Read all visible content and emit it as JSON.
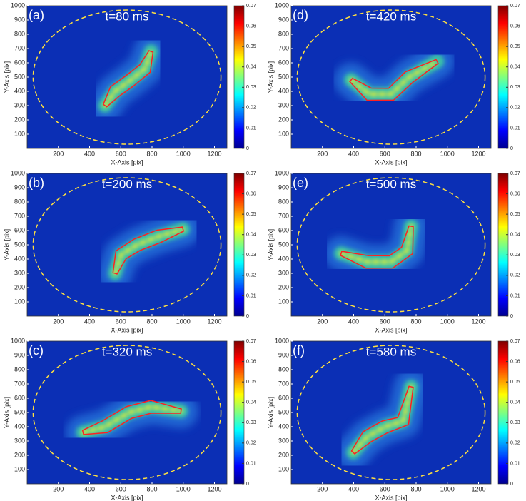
{
  "chart_data": [
    {
      "type": "heatmap",
      "label": "(a)",
      "title": "t=80 ms",
      "xlabel": "X-Axis [pix]",
      "ylabel": "Y-Axis [pix]",
      "xlim": [
        0,
        1280
      ],
      "ylim": [
        0,
        1000
      ],
      "xticks": [
        200,
        400,
        600,
        800,
        1000,
        1200
      ],
      "yticks": [
        100,
        200,
        300,
        400,
        500,
        600,
        700,
        800,
        900,
        1000
      ],
      "colorbar_lim": [
        0,
        0.07
      ],
      "colorbar_ticks": [
        0,
        0.01,
        0.02,
        0.03,
        0.04,
        0.05,
        0.06,
        0.07
      ]
    },
    {
      "type": "heatmap",
      "label": "(b)",
      "title": "t=200 ms",
      "xlabel": "X-Axis [pix]",
      "ylabel": "Y-Axis [pix]",
      "xlim": [
        0,
        1280
      ],
      "ylim": [
        0,
        1000
      ],
      "xticks": [
        200,
        400,
        600,
        800,
        1000,
        1200
      ],
      "yticks": [
        100,
        200,
        300,
        400,
        500,
        600,
        700,
        800,
        900,
        1000
      ],
      "colorbar_lim": [
        0,
        0.07
      ],
      "colorbar_ticks": [
        0,
        0.01,
        0.02,
        0.03,
        0.04,
        0.05,
        0.06,
        0.07
      ]
    },
    {
      "type": "heatmap",
      "label": "(c)",
      "title": "t=320 ms",
      "xlabel": "X-Axis [pix]",
      "ylabel": "Y-Axis [pix]",
      "xlim": [
        0,
        1280
      ],
      "ylim": [
        0,
        1000
      ],
      "xticks": [
        200,
        400,
        600,
        800,
        1000,
        1200
      ],
      "yticks": [
        100,
        200,
        300,
        400,
        500,
        600,
        700,
        800,
        900,
        1000
      ],
      "colorbar_lim": [
        0,
        0.07
      ],
      "colorbar_ticks": [
        0,
        0.01,
        0.02,
        0.03,
        0.04,
        0.05,
        0.06,
        0.07
      ]
    },
    {
      "type": "heatmap",
      "label": "(d)",
      "title": "t=420 ms",
      "xlabel": "X-Axis [pix]",
      "ylabel": "Y-Axis [pix]",
      "xlim": [
        0,
        1280
      ],
      "ylim": [
        0,
        1000
      ],
      "xticks": [
        200,
        400,
        600,
        800,
        1000,
        1200
      ],
      "yticks": [
        100,
        200,
        300,
        400,
        500,
        600,
        700,
        800,
        900,
        1000
      ],
      "colorbar_lim": [
        0,
        0.07
      ],
      "colorbar_ticks": [
        0,
        0.01,
        0.02,
        0.03,
        0.04,
        0.05,
        0.06,
        0.07
      ]
    },
    {
      "type": "heatmap",
      "label": "(e)",
      "title": "t=500 ms",
      "xlabel": "X-Axis [pix]",
      "ylabel": "Y-Axis [pix]",
      "xlim": [
        0,
        1280
      ],
      "ylim": [
        0,
        1000
      ],
      "xticks": [
        200,
        400,
        600,
        800,
        1000,
        1200
      ],
      "yticks": [
        100,
        200,
        300,
        400,
        500,
        600,
        700,
        800,
        900,
        1000
      ],
      "colorbar_lim": [
        0,
        0.07
      ],
      "colorbar_ticks": [
        0,
        0.01,
        0.02,
        0.03,
        0.04,
        0.05,
        0.06,
        0.07
      ]
    },
    {
      "type": "heatmap",
      "label": "(f)",
      "title": "t=580 ms",
      "xlabel": "X-Axis [pix]",
      "ylabel": "Y-Axis [pix]",
      "xlim": [
        0,
        1280
      ],
      "ylim": [
        0,
        1000
      ],
      "xticks": [
        200,
        400,
        600,
        800,
        1000,
        1200
      ],
      "yticks": [
        100,
        200,
        300,
        400,
        500,
        600,
        700,
        800,
        900,
        1000
      ],
      "colorbar_lim": [
        0,
        0.07
      ],
      "colorbar_ticks": [
        0,
        0.01,
        0.02,
        0.03,
        0.04,
        0.05,
        0.06,
        0.07
      ]
    }
  ]
}
